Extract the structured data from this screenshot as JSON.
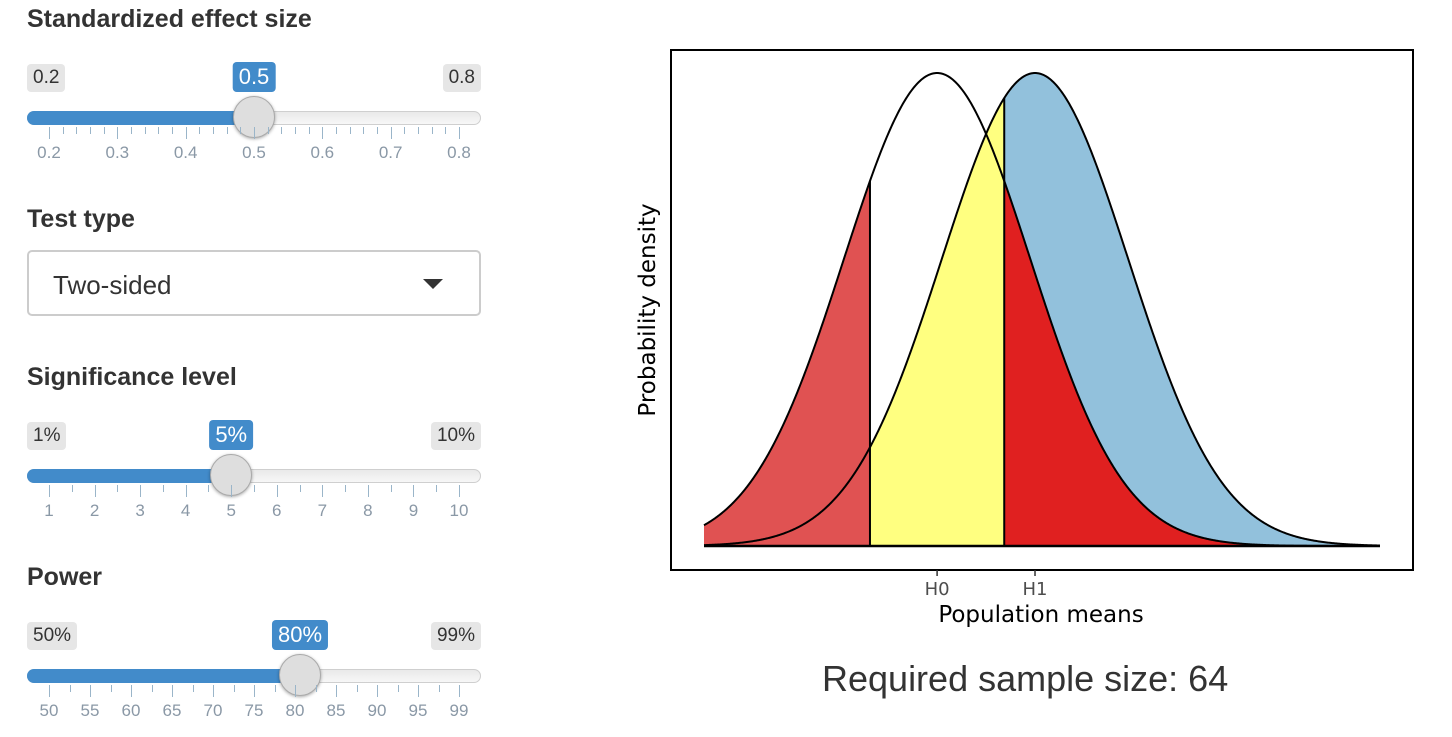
{
  "effect_size": {
    "label": "Standardized effect size",
    "min_label": "0.2",
    "max_label": "0.8",
    "value_label": "0.5",
    "value": 0.5,
    "min": 0.2,
    "max": 0.8,
    "ticks": [
      "0.2",
      "0.3",
      "0.4",
      "0.5",
      "0.6",
      "0.7",
      "0.8"
    ],
    "minor_per_major": 4
  },
  "test_type": {
    "label": "Test type",
    "selected": "Two-sided"
  },
  "significance": {
    "label": "Significance level",
    "min_label": "1%",
    "max_label": "10%",
    "value_label": "5%",
    "value": 5,
    "min": 1,
    "max": 10,
    "ticks": [
      "1",
      "2",
      "3",
      "4",
      "5",
      "6",
      "7",
      "8",
      "9",
      "10"
    ],
    "minor_per_major": 1
  },
  "power": {
    "label": "Power",
    "min_label": "50%",
    "max_label": "99%",
    "value_label": "80%",
    "value": 80,
    "min": 50,
    "max": 99,
    "ticks": [
      "50",
      "55",
      "60",
      "65",
      "70",
      "75",
      "80",
      "85",
      "90",
      "95",
      "99"
    ],
    "minor_per_major": 1
  },
  "chart_data": {
    "type": "area",
    "xlabel": "Population means",
    "ylabel": "Probability density",
    "x_ticks": [
      "H0",
      "H1"
    ],
    "series": [
      {
        "name": "H0",
        "mean": 0,
        "sd": 1,
        "color": "#ffffff"
      },
      {
        "name": "H1",
        "mean": 1.05,
        "sd": 1,
        "color": "#92c1dc"
      }
    ],
    "critical_value": 0.72,
    "lower_critical": -0.72,
    "colors": {
      "alpha_region": "#e02020",
      "alpha_lower": "#e05252",
      "beta_region": "#ffff80",
      "power_region": "#92c1dc"
    },
    "grid": false
  },
  "result": {
    "label": "Required sample size: 64"
  }
}
